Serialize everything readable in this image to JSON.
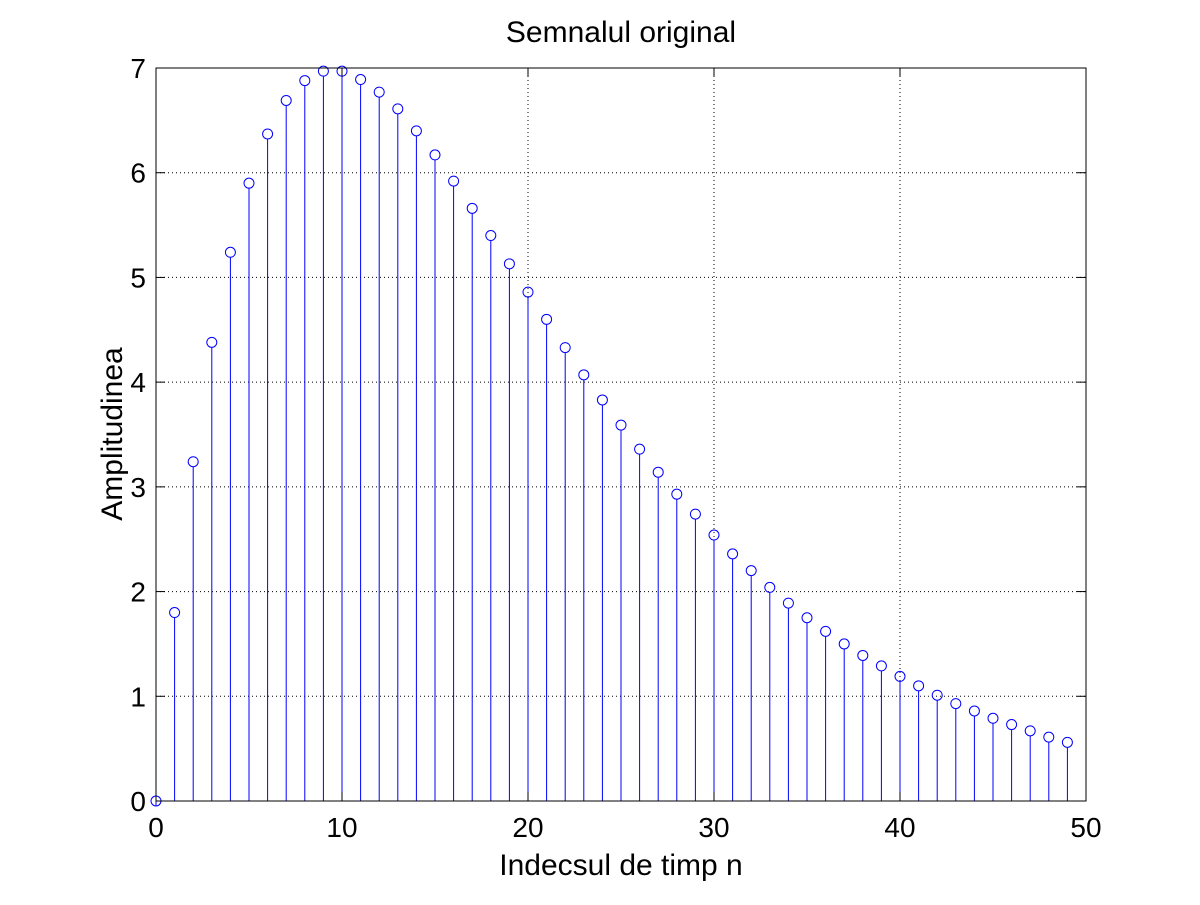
{
  "chart_data": {
    "type": "stem",
    "title": "Semnalul original",
    "xlabel": "Indecsul de timp n",
    "ylabel": "Amplitudinea",
    "xlim": [
      0,
      50
    ],
    "ylim": [
      0,
      7
    ],
    "xticks": [
      0,
      10,
      20,
      30,
      40,
      50
    ],
    "yticks": [
      0,
      1,
      2,
      3,
      4,
      5,
      6,
      7
    ],
    "grid": true,
    "legend": "none",
    "series": [
      {
        "color": "#0000ff",
        "marker": "circle",
        "x": [
          0,
          1,
          2,
          3,
          4,
          5,
          6,
          7,
          8,
          9,
          10,
          11,
          12,
          13,
          14,
          15,
          16,
          17,
          18,
          19,
          20,
          21,
          22,
          23,
          24,
          25,
          26,
          27,
          28,
          29,
          30,
          31,
          32,
          33,
          34,
          35,
          36,
          37,
          38,
          39,
          40,
          41,
          42,
          43,
          44,
          45,
          46,
          47,
          48,
          49
        ],
        "values": [
          0,
          1.8,
          3.24,
          4.38,
          5.24,
          5.9,
          6.37,
          6.69,
          6.88,
          6.97,
          6.97,
          6.89,
          6.77,
          6.61,
          6.4,
          6.17,
          5.92,
          5.66,
          5.4,
          5.13,
          4.86,
          4.6,
          4.33,
          4.07,
          3.83,
          3.59,
          3.36,
          3.14,
          2.93,
          2.74,
          2.54,
          2.36,
          2.2,
          2.04,
          1.89,
          1.75,
          1.62,
          1.5,
          1.39,
          1.29,
          1.19,
          1.1,
          1.01,
          0.93,
          0.86,
          0.79,
          0.73,
          0.67,
          0.61,
          0.56
        ]
      }
    ]
  }
}
